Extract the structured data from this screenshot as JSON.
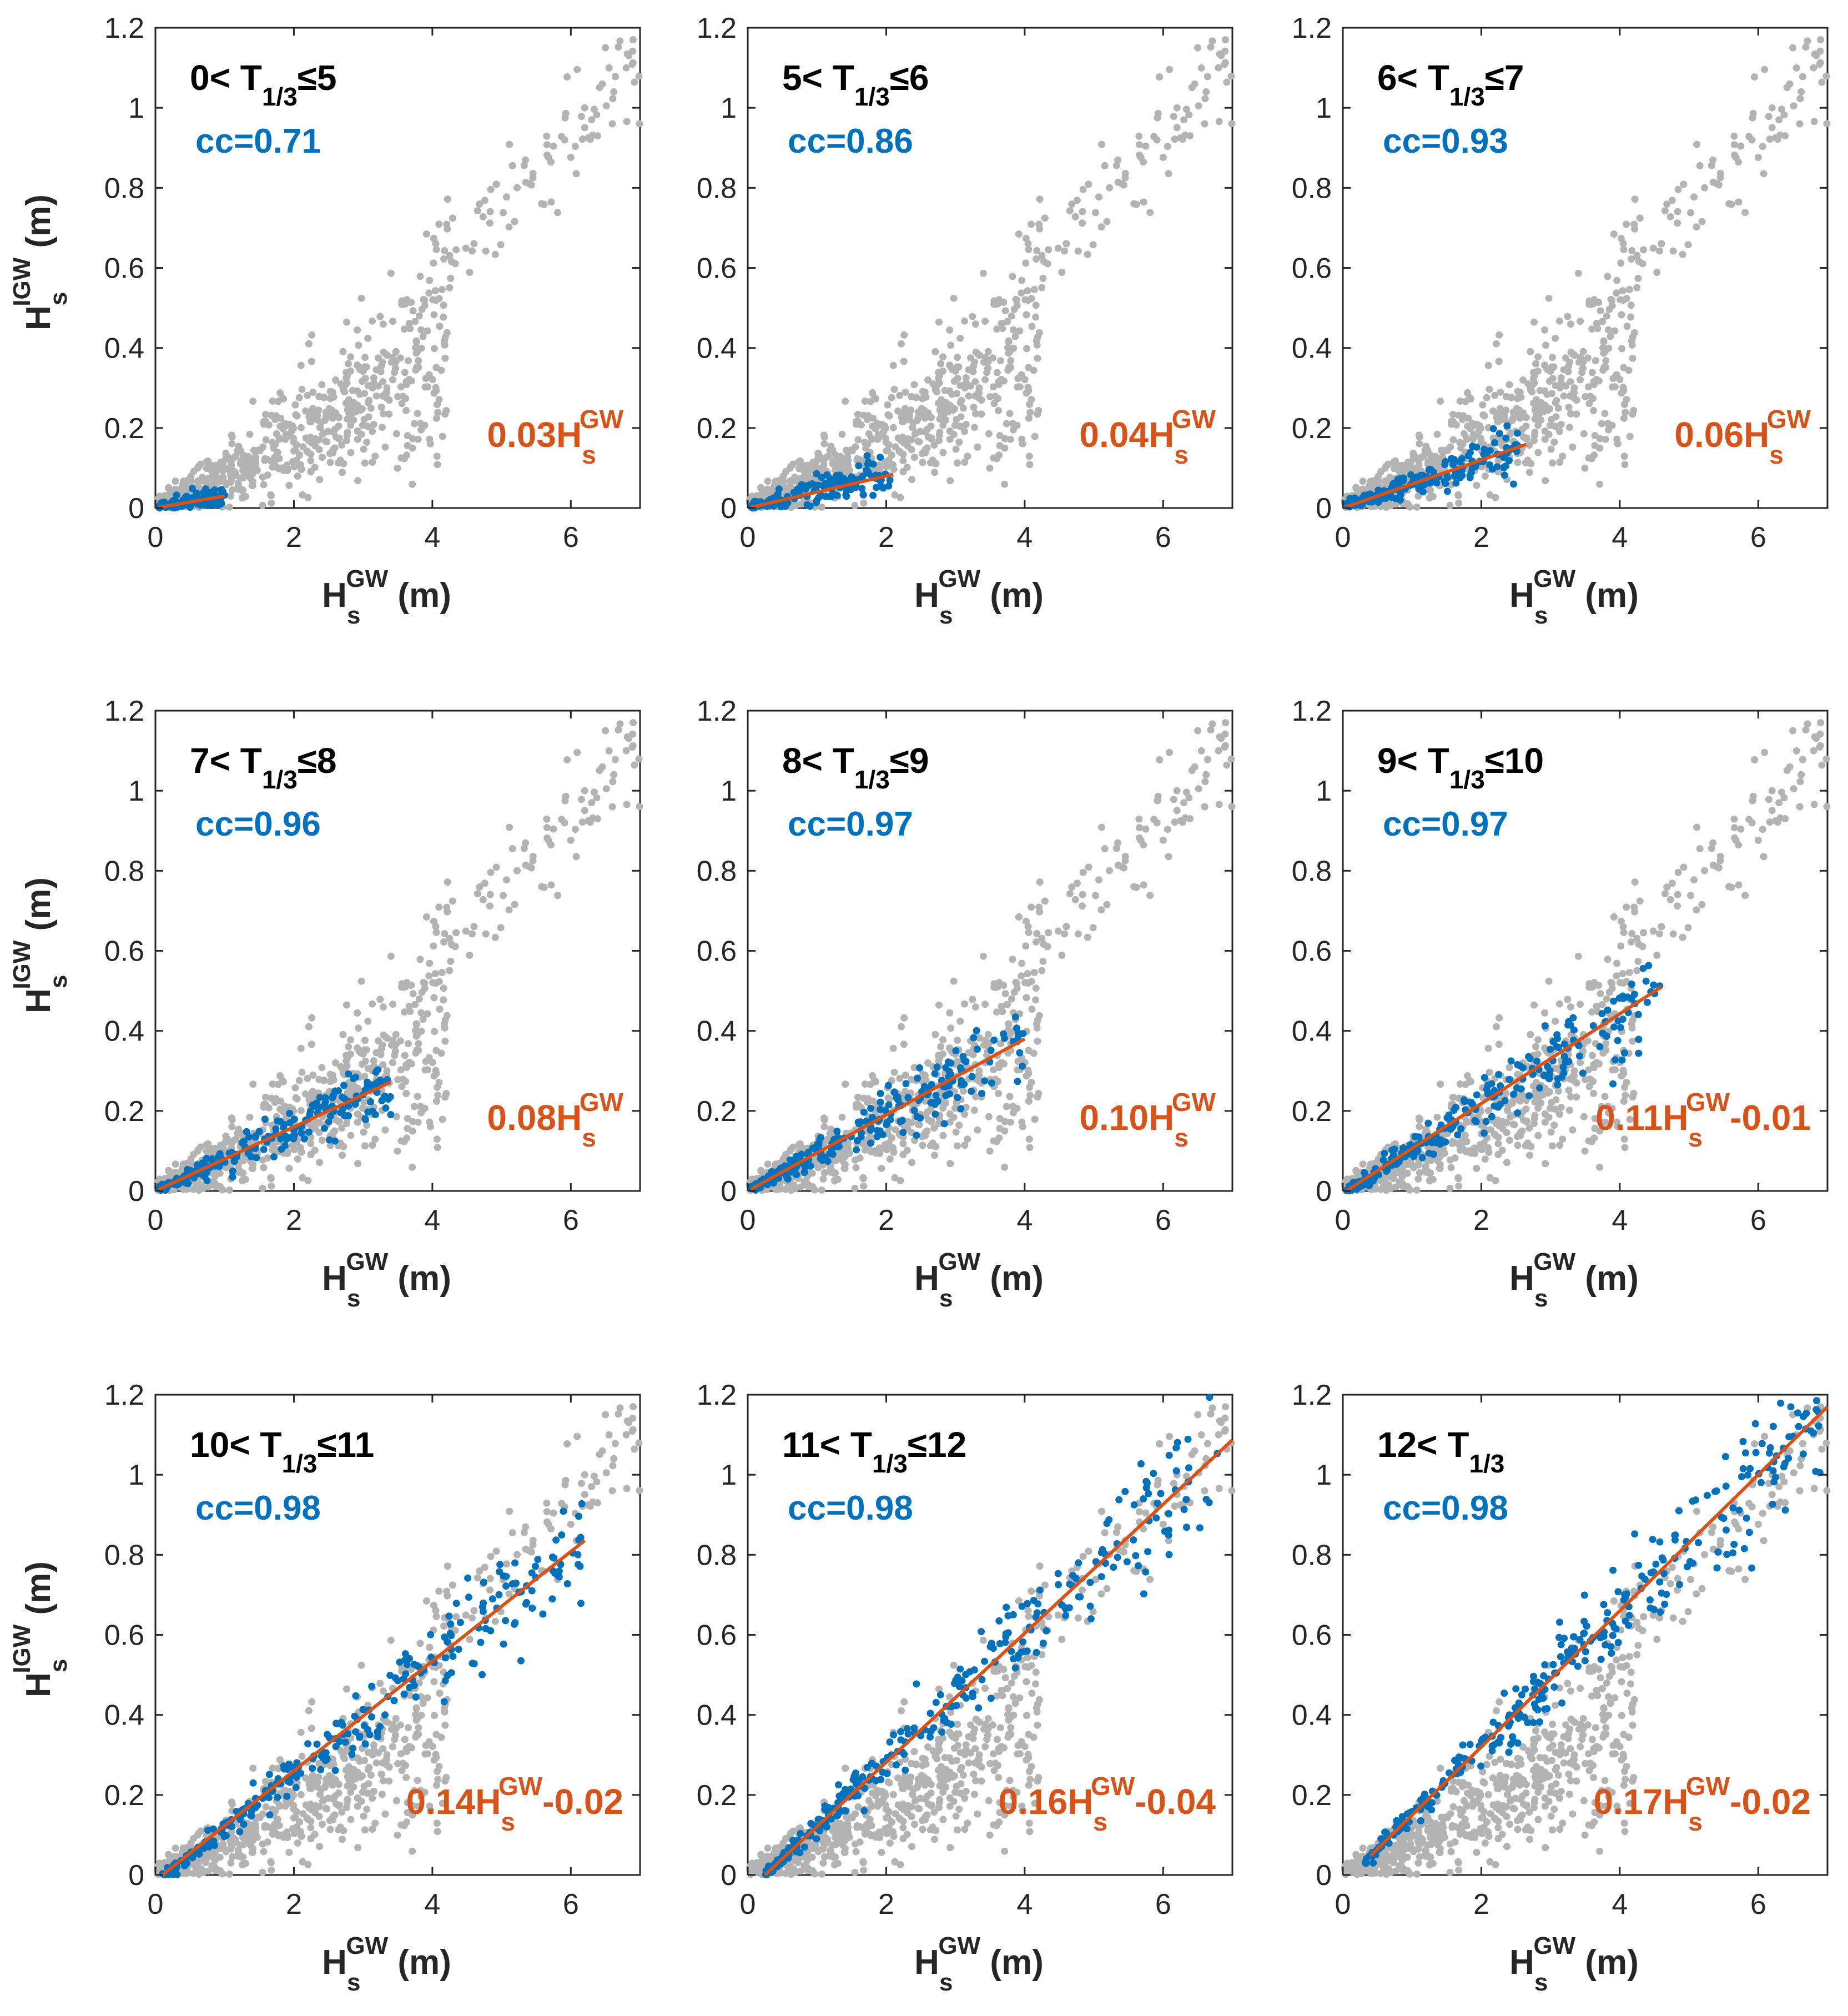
{
  "colors": {
    "all_points": "#b3b3b3",
    "subset_points": "#0072bd",
    "fit_line": "#d95319",
    "cc_text": "#0072bd",
    "fit_text": "#d95319",
    "axes": "#262626"
  },
  "chart_data": [
    {
      "type": "scatter",
      "title": {
        "prefix": "0<",
        "var": "T",
        "sub": "1/3",
        "suffix": "≤5"
      },
      "cc": "cc=0.71",
      "fit_text": {
        "coef": "0.03H",
        "sub": "s",
        "sup": "GW",
        "tail": ""
      },
      "fit": {
        "slope": 0.03,
        "intercept": 0.0,
        "x_range": [
          0.05,
          1.0
        ]
      },
      "subset_x_range": [
        0.05,
        1.0
      ],
      "xlabel": {
        "main": "H",
        "sub": "s",
        "sup": "GW",
        "unit": " (m)"
      },
      "ylabel": {
        "main": "H",
        "sub": "s",
        "sup": "IGW",
        "unit": " (m)"
      },
      "xlim": [
        0,
        7
      ],
      "ylim": [
        0,
        1.2
      ],
      "xticks": [
        0,
        2,
        4,
        6
      ],
      "yticks": [
        0,
        0.2,
        0.4,
        0.6,
        0.8,
        1,
        1.2
      ],
      "xtick_labels": [
        "0",
        "2",
        "4",
        "6"
      ],
      "ytick_labels": [
        "0",
        "0.2",
        "0.4",
        "0.6",
        "0.8",
        "1",
        "1.2"
      ]
    },
    {
      "type": "scatter",
      "title": {
        "prefix": "5<",
        "var": "T",
        "sub": "1/3",
        "suffix": "≤6"
      },
      "cc": "cc=0.86",
      "fit_text": {
        "coef": "0.04H",
        "sub": "s",
        "sup": "GW",
        "tail": ""
      },
      "fit": {
        "slope": 0.04,
        "intercept": 0.0,
        "x_range": [
          0.05,
          2.1
        ]
      },
      "subset_x_range": [
        0.05,
        2.1
      ],
      "xlabel": {
        "main": "H",
        "sub": "s",
        "sup": "GW",
        "unit": " (m)"
      },
      "ylabel": {
        "main": "H",
        "sub": "s",
        "sup": "IGW",
        "unit": " (m)"
      },
      "xlim": [
        0,
        7
      ],
      "ylim": [
        0,
        1.2
      ],
      "xticks": [
        0,
        2,
        4,
        6
      ],
      "yticks": [
        0,
        0.2,
        0.4,
        0.6,
        0.8,
        1,
        1.2
      ],
      "xtick_labels": [
        "0",
        "2",
        "4",
        "6"
      ],
      "ytick_labels": [
        "0",
        "0.2",
        "0.4",
        "0.6",
        "0.8",
        "1",
        "1.2"
      ]
    },
    {
      "type": "scatter",
      "title": {
        "prefix": "6<",
        "var": "T",
        "sub": "1/3",
        "suffix": "≤7"
      },
      "cc": "cc=0.93",
      "fit_text": {
        "coef": "0.06H",
        "sub": "s",
        "sup": "GW",
        "tail": ""
      },
      "fit": {
        "slope": 0.06,
        "intercept": 0.0,
        "x_range": [
          0.05,
          2.65
        ]
      },
      "subset_x_range": [
        0.05,
        2.65
      ],
      "xlabel": {
        "main": "H",
        "sub": "s",
        "sup": "GW",
        "unit": " (m)"
      },
      "ylabel": {
        "main": "H",
        "sub": "s",
        "sup": "IGW",
        "unit": " (m)"
      },
      "xlim": [
        0,
        7
      ],
      "ylim": [
        0,
        1.2
      ],
      "xticks": [
        0,
        2,
        4,
        6
      ],
      "yticks": [
        0,
        0.2,
        0.4,
        0.6,
        0.8,
        1,
        1.2
      ],
      "xtick_labels": [
        "0",
        "2",
        "4",
        "6"
      ],
      "ytick_labels": [
        "0",
        "0.2",
        "0.4",
        "0.6",
        "0.8",
        "1",
        "1.2"
      ]
    },
    {
      "type": "scatter",
      "title": {
        "prefix": "7<",
        "var": "T",
        "sub": "1/3",
        "suffix": "≤8"
      },
      "cc": "cc=0.96",
      "fit_text": {
        "coef": "0.08H",
        "sub": "s",
        "sup": "GW",
        "tail": ""
      },
      "fit": {
        "slope": 0.08,
        "intercept": 0.0,
        "x_range": [
          0.05,
          3.4
        ]
      },
      "subset_x_range": [
        0.05,
        3.4
      ],
      "xlabel": {
        "main": "H",
        "sub": "s",
        "sup": "GW",
        "unit": " (m)"
      },
      "ylabel": {
        "main": "H",
        "sub": "s",
        "sup": "IGW",
        "unit": " (m)"
      },
      "xlim": [
        0,
        7
      ],
      "ylim": [
        0,
        1.2
      ],
      "xticks": [
        0,
        2,
        4,
        6
      ],
      "yticks": [
        0,
        0.2,
        0.4,
        0.6,
        0.8,
        1,
        1.2
      ],
      "xtick_labels": [
        "0",
        "2",
        "4",
        "6"
      ],
      "ytick_labels": [
        "0",
        "0.2",
        "0.4",
        "0.6",
        "0.8",
        "1",
        "1.2"
      ]
    },
    {
      "type": "scatter",
      "title": {
        "prefix": "8<",
        "var": "T",
        "sub": "1/3",
        "suffix": "≤9"
      },
      "cc": "cc=0.97",
      "fit_text": {
        "coef": "0.10H",
        "sub": "s",
        "sup": "GW",
        "tail": ""
      },
      "fit": {
        "slope": 0.095,
        "intercept": 0.0,
        "x_range": [
          0.05,
          4.0
        ]
      },
      "subset_x_range": [
        0.05,
        4.0
      ],
      "xlabel": {
        "main": "H",
        "sub": "s",
        "sup": "GW",
        "unit": " (m)"
      },
      "ylabel": {
        "main": "H",
        "sub": "s",
        "sup": "IGW",
        "unit": " (m)"
      },
      "xlim": [
        0,
        7
      ],
      "ylim": [
        0,
        1.2
      ],
      "xticks": [
        0,
        2,
        4,
        6
      ],
      "yticks": [
        0,
        0.2,
        0.4,
        0.6,
        0.8,
        1,
        1.2
      ],
      "xtick_labels": [
        "0",
        "2",
        "4",
        "6"
      ],
      "ytick_labels": [
        "0",
        "0.2",
        "0.4",
        "0.6",
        "0.8",
        "1",
        "1.2"
      ]
    },
    {
      "type": "scatter",
      "title": {
        "prefix": "9<",
        "var": "T",
        "sub": "1/3",
        "suffix": "≤10"
      },
      "cc": "cc=0.97",
      "fit_text": {
        "coef": "0.11H",
        "sub": "s",
        "sup": "GW",
        "tail": "-0.01"
      },
      "fit": {
        "slope": 0.113,
        "intercept": -0.01,
        "x_range": [
          0.05,
          4.6
        ]
      },
      "subset_x_range": [
        0.05,
        4.6
      ],
      "xlabel": {
        "main": "H",
        "sub": "s",
        "sup": "GW",
        "unit": " (m)"
      },
      "ylabel": {
        "main": "H",
        "sub": "s",
        "sup": "IGW",
        "unit": " (m)"
      },
      "xlim": [
        0,
        7
      ],
      "ylim": [
        0,
        1.2
      ],
      "xticks": [
        0,
        2,
        4,
        6
      ],
      "yticks": [
        0,
        0.2,
        0.4,
        0.6,
        0.8,
        1,
        1.2
      ],
      "xtick_labels": [
        "0",
        "2",
        "4",
        "6"
      ],
      "ytick_labels": [
        "0",
        "0.2",
        "0.4",
        "0.6",
        "0.8",
        "1",
        "1.2"
      ]
    },
    {
      "type": "scatter",
      "title": {
        "prefix": "10<",
        "var": "T",
        "sub": "1/3",
        "suffix": "≤11"
      },
      "cc": "cc=0.98",
      "fit_text": {
        "coef": "0.14H",
        "sub": "s",
        "sup": "GW",
        "tail": "-0.02"
      },
      "fit": {
        "slope": 0.138,
        "intercept": -0.02,
        "x_range": [
          0.1,
          6.2
        ]
      },
      "subset_x_range": [
        0.1,
        6.2
      ],
      "xlabel": {
        "main": "H",
        "sub": "s",
        "sup": "GW",
        "unit": " (m)"
      },
      "ylabel": {
        "main": "H",
        "sub": "s",
        "sup": "IGW",
        "unit": " (m)"
      },
      "xlim": [
        0,
        7
      ],
      "ylim": [
        0,
        1.2
      ],
      "xticks": [
        0,
        2,
        4,
        6
      ],
      "yticks": [
        0,
        0.2,
        0.4,
        0.6,
        0.8,
        1,
        1.2
      ],
      "xtick_labels": [
        "0",
        "2",
        "4",
        "6"
      ],
      "ytick_labels": [
        "0",
        "0.2",
        "0.4",
        "0.6",
        "0.8",
        "1",
        "1.2"
      ]
    },
    {
      "type": "scatter",
      "title": {
        "prefix": "11<",
        "var": "T",
        "sub": "1/3",
        "suffix": "≤12"
      },
      "cc": "cc=0.98",
      "fit_text": {
        "coef": "0.16H",
        "sub": "s",
        "sup": "GW",
        "tail": "-0.04"
      },
      "fit": {
        "slope": 0.161,
        "intercept": -0.04,
        "x_range": [
          0.25,
          7.0
        ]
      },
      "subset_x_range": [
        0.25,
        6.8
      ],
      "xlabel": {
        "main": "H",
        "sub": "s",
        "sup": "GW",
        "unit": " (m)"
      },
      "ylabel": {
        "main": "H",
        "sub": "s",
        "sup": "IGW",
        "unit": " (m)"
      },
      "xlim": [
        0,
        7
      ],
      "ylim": [
        0,
        1.2
      ],
      "xticks": [
        0,
        2,
        4,
        6
      ],
      "yticks": [
        0,
        0.2,
        0.4,
        0.6,
        0.8,
        1,
        1.2
      ],
      "xtick_labels": [
        "0",
        "2",
        "4",
        "6"
      ],
      "ytick_labels": [
        "0",
        "0.2",
        "0.4",
        "0.6",
        "0.8",
        "1",
        "1.2"
      ]
    },
    {
      "type": "scatter",
      "title": {
        "prefix": "12<",
        "var": "T",
        "sub": "1/3",
        "suffix": ""
      },
      "cc": "cc=0.98",
      "fit_text": {
        "coef": "0.17H",
        "sub": "s",
        "sup": "GW",
        "tail": "-0.02"
      },
      "fit": {
        "slope": 0.17,
        "intercept": -0.02,
        "x_range": [
          0.4,
          7.0
        ]
      },
      "subset_x_range": [
        0.3,
        7.0
      ],
      "xlabel": {
        "main": "H",
        "sub": "s",
        "sup": "GW",
        "unit": " (m)"
      },
      "ylabel": {
        "main": "H",
        "sub": "s",
        "sup": "IGW",
        "unit": " (m)"
      },
      "xlim": [
        0,
        7
      ],
      "ylim": [
        0,
        1.2
      ],
      "xticks": [
        0,
        2,
        4,
        6
      ],
      "yticks": [
        0,
        0.2,
        0.4,
        0.6,
        0.8,
        1,
        1.2
      ],
      "xtick_labels": [
        "0",
        "2",
        "4",
        "6"
      ],
      "ytick_labels": [
        "0",
        "0.2",
        "0.4",
        "0.6",
        "0.8",
        "1",
        "1.2"
      ]
    }
  ]
}
